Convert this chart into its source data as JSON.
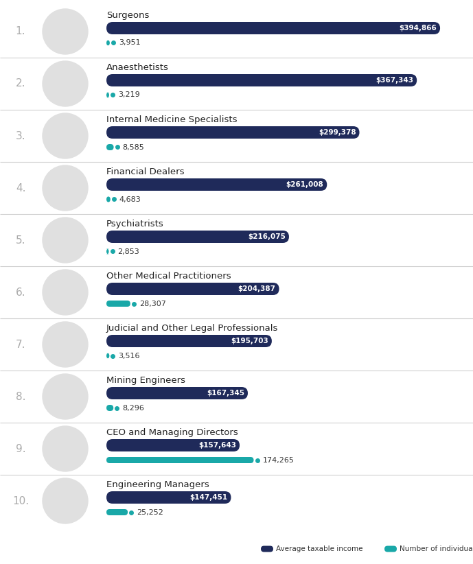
{
  "occupations": [
    "Surgeons",
    "Anaesthetists",
    "Internal Medicine Specialists",
    "Financial Dealers",
    "Psychiatrists",
    "Other Medical Practitioners",
    "Judicial and Other Legal Professionals",
    "Mining Engineers",
    "CEO and Managing Directors",
    "Engineering Managers"
  ],
  "avg_income": [
    394866,
    367343,
    299378,
    261008,
    216075,
    204387,
    195703,
    167345,
    157643,
    147451
  ],
  "num_individuals": [
    3951,
    3219,
    8585,
    4683,
    2853,
    28307,
    3516,
    8296,
    174265,
    25252
  ],
  "income_labels": [
    "$394,866",
    "$367,343",
    "$299,378",
    "$261,008",
    "$216,075",
    "$204,387",
    "$195,703",
    "$167,345",
    "$157,643",
    "$147,451"
  ],
  "individual_labels": [
    "3,951",
    "3,219",
    "8,585",
    "4,683",
    "2,853",
    "28,307",
    "3,516",
    "8,296",
    "174,265",
    "25,252"
  ],
  "bar_color_income": "#1f2a5a",
  "bar_color_individuals": "#19a8a8",
  "background_color": "#ffffff",
  "separator_color": "#d0d0d0",
  "rank_color": "#aaaaaa",
  "text_color": "#333333",
  "circle_color": "#e0e0e0",
  "max_income": 420000,
  "legend_income_label": "Average taxable income",
  "legend_individuals_label": "Number of individuals"
}
